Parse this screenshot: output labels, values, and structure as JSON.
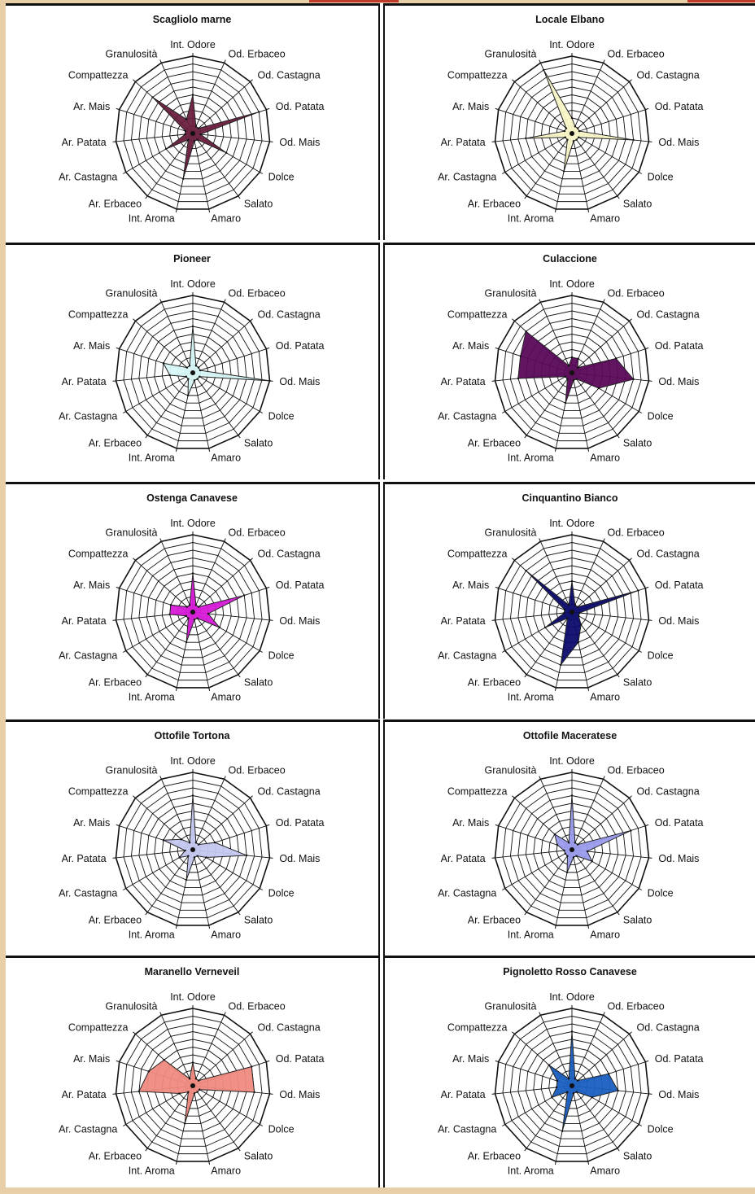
{
  "axes": [
    "Int. Odore",
    "Od. Erbaceo",
    "Od. Castagna",
    "Od. Patata",
    "Od. Mais",
    "Dolce",
    "Salato",
    "Amaro",
    "Int. Aroma",
    "Ar. Erbaceo",
    "Ar. Castagna",
    "Ar. Patata",
    "Ar. Mais",
    "Compattezza",
    "Granulosità"
  ],
  "chart_data": [
    {
      "type": "radar",
      "title": "Scagliolo marne",
      "color": "#6b2040",
      "categories": [
        "Int. Odore",
        "Od. Erbaceo",
        "Od. Castagna",
        "Od. Patata",
        "Od. Mais",
        "Dolce",
        "Salato",
        "Amaro",
        "Int. Aroma",
        "Ar. Erbaceo",
        "Ar. Castagna",
        "Ar. Patata",
        "Ar. Mais",
        "Compattezza",
        "Granulosità"
      ],
      "values": [
        5,
        1,
        1,
        9,
        1,
        5,
        1,
        1,
        6,
        1,
        4,
        1,
        1,
        7,
        2
      ],
      "rlim": [
        0,
        10
      ]
    },
    {
      "type": "radar",
      "title": "Locale Elbano",
      "color": "#faf7c8",
      "categories": [
        "Int. Odore",
        "Od. Erbaceo",
        "Od. Castagna",
        "Od. Patata",
        "Od. Mais",
        "Dolce",
        "Salato",
        "Amaro",
        "Int. Aroma",
        "Ar. Erbaceo",
        "Ar. Castagna",
        "Ar. Patata",
        "Ar. Mais",
        "Compattezza",
        "Granulosità"
      ],
      "values": [
        2,
        1,
        1,
        1,
        8,
        1,
        1,
        1,
        5,
        1,
        1,
        6,
        1,
        1,
        9
      ],
      "rlim": [
        0,
        10
      ]
    },
    {
      "type": "radar",
      "title": "Pioneer",
      "color": "#d8f8f8",
      "categories": [
        "Int. Odore",
        "Od. Erbaceo",
        "Od. Castagna",
        "Od. Patata",
        "Od. Mais",
        "Dolce",
        "Salato",
        "Amaro",
        "Int. Aroma",
        "Ar. Erbaceo",
        "Ar. Castagna",
        "Ar. Patata",
        "Ar. Mais",
        "Compattezza",
        "Granulosità"
      ],
      "values": [
        6,
        1,
        1,
        1,
        10,
        1,
        1,
        1,
        3,
        1,
        1,
        3,
        4,
        1,
        1
      ],
      "rlim": [
        0,
        10
      ]
    },
    {
      "type": "radar",
      "title": "Culaccione",
      "color": "#5a0a58",
      "categories": [
        "Int. Odore",
        "Od. Erbaceo",
        "Od. Castagna",
        "Od. Patata",
        "Od. Mais",
        "Dolce",
        "Salato",
        "Amaro",
        "Int. Aroma",
        "Ar. Erbaceo",
        "Ar. Castagna",
        "Ar. Patata",
        "Ar. Mais",
        "Compattezza",
        "Granulosità"
      ],
      "values": [
        2,
        2,
        1,
        6,
        8,
        4,
        1,
        1,
        4,
        1,
        1,
        7,
        7,
        8,
        1
      ],
      "rlim": [
        0,
        10
      ]
    },
    {
      "type": "radar",
      "title": "Ostenga Canavese",
      "color": "#d81ad8",
      "categories": [
        "Int. Odore",
        "Od. Erbaceo",
        "Od. Castagna",
        "Od. Patata",
        "Od. Mais",
        "Dolce",
        "Salato",
        "Amaro",
        "Int. Aroma",
        "Ar. Erbaceo",
        "Ar. Castagna",
        "Ar. Patata",
        "Ar. Mais",
        "Compattezza",
        "Granulosità"
      ],
      "values": [
        5,
        1,
        1,
        7,
        2,
        4,
        1,
        1,
        4,
        1,
        1,
        3,
        3,
        1,
        1
      ],
      "rlim": [
        0,
        10
      ]
    },
    {
      "type": "radar",
      "title": "Cinquantino Bianco",
      "color": "#0d0d6e",
      "categories": [
        "Int. Odore",
        "Od. Erbaceo",
        "Od. Castagna",
        "Od. Patata",
        "Od. Mais",
        "Dolce",
        "Salato",
        "Amaro",
        "Int. Aroma",
        "Ar. Erbaceo",
        "Ar. Castagna",
        "Ar. Patata",
        "Ar. Mais",
        "Compattezza",
        "Granulosità"
      ],
      "values": [
        4,
        1,
        1,
        9,
        1,
        1,
        2,
        4,
        7,
        1,
        4,
        1,
        1,
        8,
        1
      ],
      "rlim": [
        0,
        10
      ]
    },
    {
      "type": "radar",
      "title": "Ottofile Tortona",
      "color": "#c5c8f0",
      "categories": [
        "Int. Odore",
        "Od. Erbaceo",
        "Od. Castagna",
        "Od. Patata",
        "Od. Mais",
        "Dolce",
        "Salato",
        "Amaro",
        "Int. Aroma",
        "Ar. Erbaceo",
        "Ar. Castagna",
        "Ar. Patata",
        "Ar. Mais",
        "Compattezza",
        "Granulosità"
      ],
      "values": [
        7,
        1,
        1,
        3,
        7,
        2,
        1,
        1,
        4,
        1,
        2,
        1,
        4,
        2,
        1
      ],
      "rlim": [
        0,
        10
      ]
    },
    {
      "type": "radar",
      "title": "Ottofile Maceratese",
      "color": "#9a9cee",
      "categories": [
        "Int. Odore",
        "Od. Erbaceo",
        "Od. Castagna",
        "Od. Patata",
        "Od. Mais",
        "Dolce",
        "Salato",
        "Amaro",
        "Int. Aroma",
        "Ar. Erbaceo",
        "Ar. Castagna",
        "Ar. Patata",
        "Ar. Mais",
        "Compattezza",
        "Granulosità"
      ],
      "values": [
        7,
        1,
        1,
        8,
        2,
        3,
        1,
        1,
        3,
        1,
        1,
        1,
        2,
        3,
        1
      ],
      "rlim": [
        0,
        10
      ]
    },
    {
      "type": "radar",
      "title": "Maranello Verneveil",
      "color": "#f08a80",
      "categories": [
        "Int. Odore",
        "Od. Erbaceo",
        "Od. Castagna",
        "Od. Patata",
        "Od. Mais",
        "Dolce",
        "Salato",
        "Amaro",
        "Int. Aroma",
        "Ar. Erbaceo",
        "Ar. Castagna",
        "Ar. Patata",
        "Ar. Mais",
        "Compattezza",
        "Granulosità"
      ],
      "values": [
        3,
        1,
        1,
        8,
        8,
        1,
        1,
        1,
        5,
        1,
        2,
        7,
        6,
        5,
        1
      ],
      "rlim": [
        0,
        10
      ]
    },
    {
      "type": "radar",
      "title": "Pignoletto Rosso Canavese",
      "color": "#1a5fc0",
      "categories": [
        "Int. Odore",
        "Od. Erbaceo",
        "Od. Castagna",
        "Od. Patata",
        "Od. Mais",
        "Dolce",
        "Salato",
        "Amaro",
        "Int. Aroma",
        "Ar. Erbaceo",
        "Ar. Castagna",
        "Ar. Patata",
        "Ar. Mais",
        "Compattezza",
        "Granulosità"
      ],
      "values": [
        7,
        1,
        1,
        5,
        6,
        3,
        1,
        1,
        6,
        1,
        3,
        2,
        2,
        4,
        1
      ],
      "rlim": [
        0,
        10
      ]
    }
  ]
}
